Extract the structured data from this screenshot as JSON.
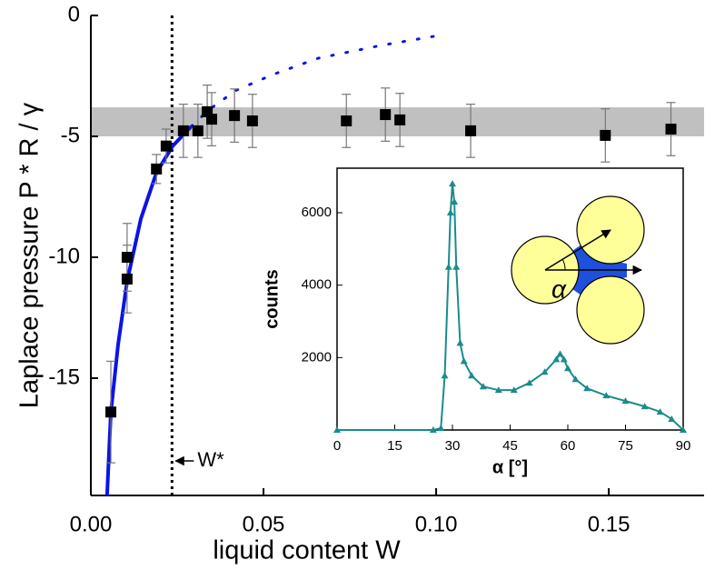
{
  "chart_data": [
    {
      "type": "scatter",
      "xlabel": "liquid content W",
      "ylabel": "Laplace pressure P * R / γ",
      "xlim": [
        0,
        0.1776
      ],
      "ylim": [
        -19.85,
        0
      ],
      "xticks": [
        {
          "value": 0,
          "label": "0.00"
        },
        {
          "value": 0.05,
          "label": "0.05"
        },
        {
          "value": 0.1,
          "label": "0.10"
        },
        {
          "value": 0.15,
          "label": "0.15"
        }
      ],
      "yticks": [
        0,
        -5,
        -10,
        -15
      ],
      "x": [
        0.0058,
        0.0105,
        0.0105,
        0.019,
        0.0218,
        0.0268,
        0.031,
        0.0337,
        0.035,
        0.0416,
        0.0468,
        0.074,
        0.0853,
        0.0895,
        0.11,
        0.149,
        0.168
      ],
      "values": [
        -16.4,
        -10.0,
        -10.9,
        -6.35,
        -5.4,
        -4.77,
        -4.77,
        -3.98,
        -4.29,
        -4.14,
        -4.36,
        -4.36,
        -4.1,
        -4.32,
        -4.77,
        -4.96,
        -4.7
      ],
      "errors": [
        2.1,
        1.4,
        1.4,
        0.6,
        0.7,
        1.1,
        1.1,
        1.1,
        1.1,
        1.1,
        1.1,
        1.1,
        1.1,
        1.1,
        1.1,
        1.1,
        1.1
      ],
      "color": "#000000",
      "fit": {
        "x": [
          0.0047,
          0.0058,
          0.0079,
          0.0105,
          0.0145,
          0.019,
          0.0237,
          0.029
        ],
        "values": [
          -19.85,
          -16.4,
          -13.6,
          -11.0,
          -8.4,
          -6.5,
          -5.4,
          -4.6
        ],
        "color": "#0a14e6"
      },
      "fit_extension": {
        "x": [
          0.029,
          0.0342,
          0.042,
          0.0526,
          0.0658,
          0.084,
          0.0995
        ],
        "values": [
          -4.6,
          -3.9,
          -3.1,
          -2.45,
          -1.77,
          -1.24,
          -0.86
        ],
        "color": "#0a14e6"
      },
      "band": [
        -5.0,
        -3.8
      ],
      "band_color": "#c0c0c0",
      "vline": 0.0235,
      "annotation": "W*"
    },
    {
      "type": "line",
      "xlabel": "α [°]",
      "ylabel": "counts",
      "xlim": [
        0,
        90
      ],
      "ylim": [
        0,
        7230
      ],
      "xticks": [
        0,
        15,
        30,
        45,
        60,
        75,
        90
      ],
      "yticks": [
        2000,
        4000,
        6000
      ],
      "x": [
        0,
        25,
        27,
        28,
        29,
        29.5,
        30,
        30.5,
        31,
        32,
        33,
        35,
        38,
        42,
        46,
        50,
        54,
        57,
        58,
        59,
        60,
        62,
        65,
        70,
        75,
        80,
        84,
        87,
        90
      ],
      "values": [
        0,
        0,
        50,
        1500,
        4500,
        6000,
        6800,
        6300,
        4500,
        2400,
        1900,
        1500,
        1200,
        1100,
        1100,
        1300,
        1600,
        1950,
        2100,
        1950,
        1700,
        1400,
        1150,
        950,
        800,
        650,
        500,
        300,
        0
      ],
      "color": "#1a8c8c",
      "diagram_label": "α"
    }
  ]
}
